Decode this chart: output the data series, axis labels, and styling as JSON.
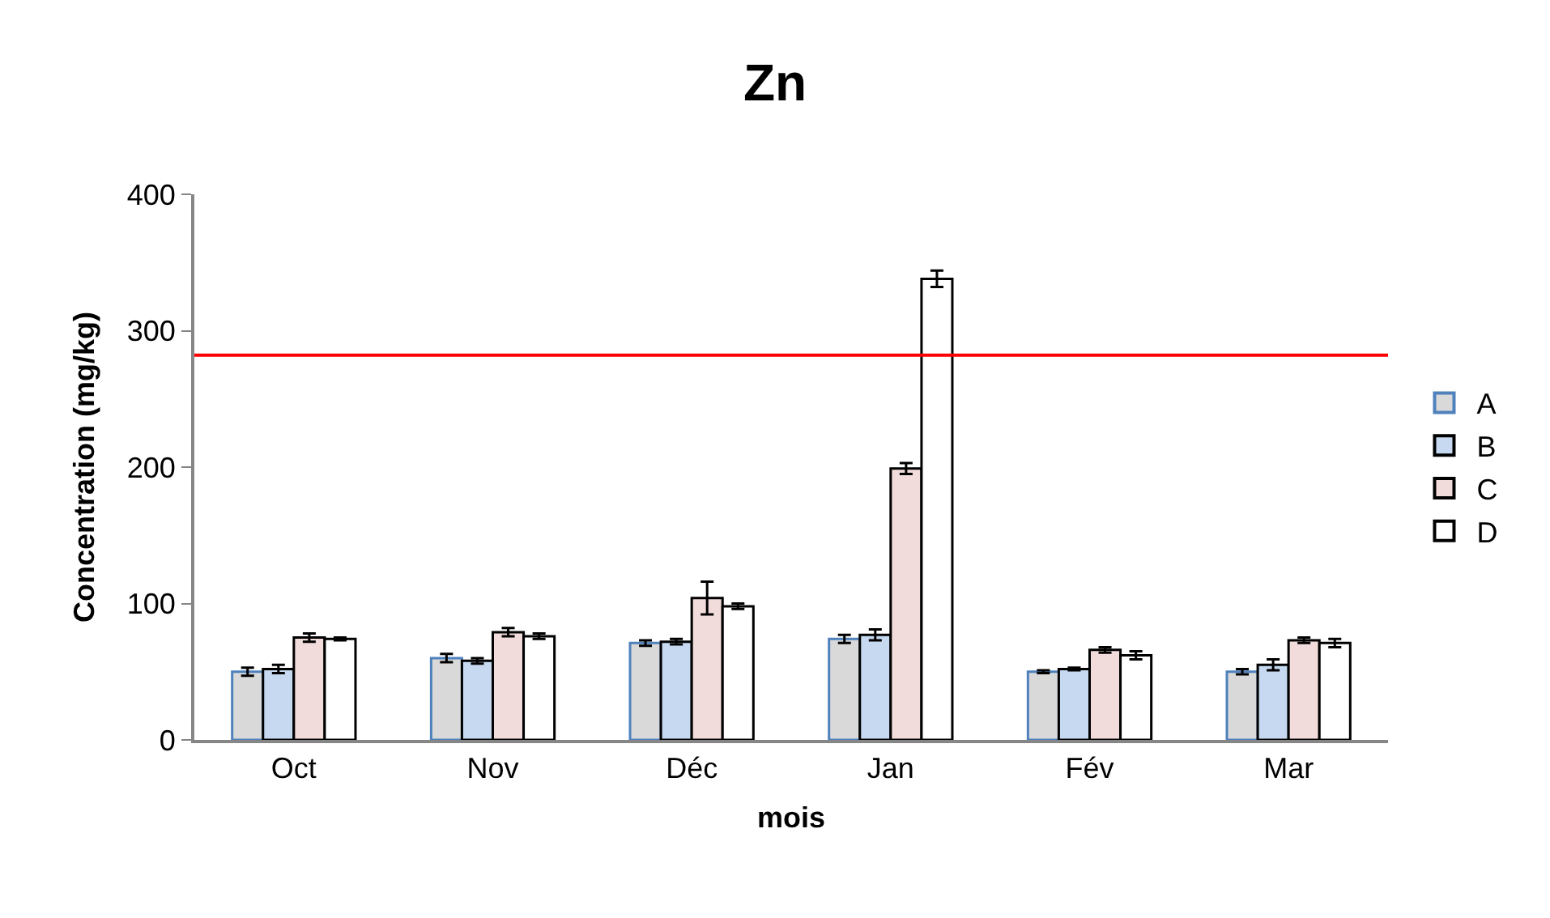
{
  "chart_data": {
    "type": "bar",
    "title": "Zn",
    "xlabel": "mois",
    "ylabel": "Concentration (mg/kg)",
    "categories": [
      "Oct",
      "Nov",
      "Déc",
      "Jan",
      "Fév",
      "Mar"
    ],
    "series": [
      {
        "name": "A",
        "color": "#d9d9d9",
        "values": [
          50,
          60,
          71,
          74,
          50,
          50
        ],
        "errors": [
          3,
          3,
          2,
          3,
          1,
          2
        ]
      },
      {
        "name": "B",
        "color": "#c6d9f1",
        "values": [
          52,
          58,
          72,
          77,
          52,
          55
        ],
        "errors": [
          3,
          2,
          2,
          4,
          1,
          4
        ]
      },
      {
        "name": "C",
        "color": "#f2dcdb",
        "values": [
          75,
          79,
          104,
          199,
          66,
          73
        ],
        "errors": [
          3,
          3,
          12,
          4,
          2,
          2
        ]
      },
      {
        "name": "D",
        "color": "#ffffff",
        "values": [
          74,
          76,
          98,
          338,
          62,
          71
        ],
        "errors": [
          1,
          2,
          2,
          6,
          3,
          3
        ]
      }
    ],
    "ylim": [
      0,
      400
    ],
    "yticks": [
      0,
      100,
      200,
      300,
      400
    ],
    "ref_lines": [
      {
        "axis": "y",
        "value": 282,
        "color": "#ff0000"
      }
    ],
    "legend": "right"
  }
}
